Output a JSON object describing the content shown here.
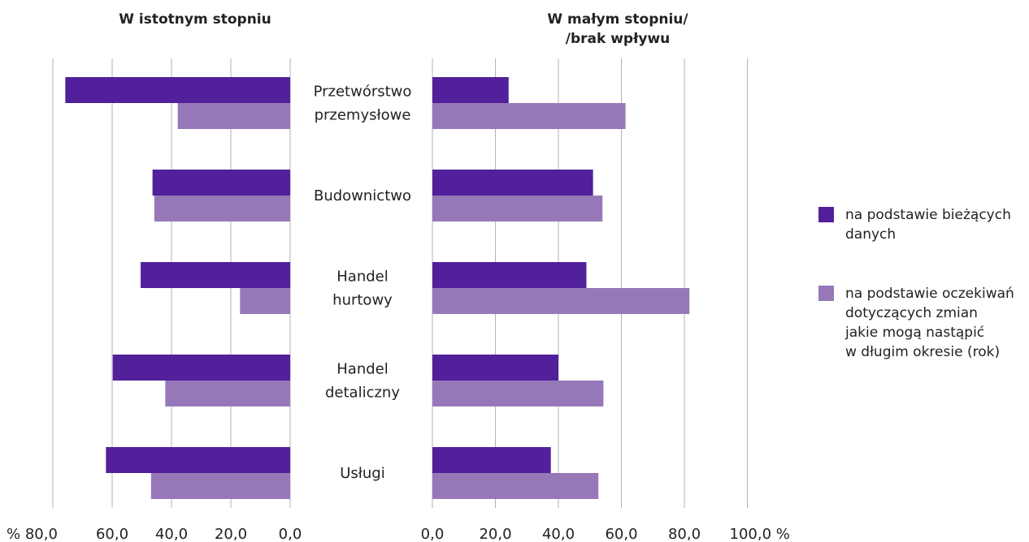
{
  "chart_data": {
    "type": "bar",
    "orientation": "horizontal",
    "categories": [
      [
        "Przetwórstwo",
        "przemysłowe"
      ],
      [
        "Budownictwo"
      ],
      [
        "Handel",
        "hurtowy"
      ],
      [
        "Handel",
        "detaliczny"
      ],
      [
        "Usługi"
      ]
    ],
    "panels": [
      {
        "title": [
          "W istotnym stopniu"
        ],
        "direction": "left",
        "xlim": [
          0,
          80
        ],
        "ticks": [
          80,
          60,
          40,
          20,
          0
        ],
        "tick_labels": [
          "% 80,0",
          "60,0",
          "40,0",
          "20,0",
          "0,0"
        ],
        "series": [
          {
            "name": "na podstawie bieżących danych",
            "values": [
              75.8,
              46.4,
              50.4,
              59.8,
              62.1
            ]
          },
          {
            "name": "na podstawie oczekiwań dotyczących zmian jakie mogą nastąpić w długim okresie (rok)",
            "values": [
              37.9,
              45.8,
              16.9,
              42.1,
              46.9
            ]
          }
        ]
      },
      {
        "title": [
          "W małym stopniu/",
          "/brak wpływu"
        ],
        "direction": "right",
        "xlim": [
          0,
          100
        ],
        "ticks": [
          0,
          20,
          40,
          60,
          80,
          100
        ],
        "tick_labels": [
          "0,0",
          "20,0",
          "40,0",
          "60,0",
          "80,0",
          "100,0 %"
        ],
        "series": [
          {
            "name": "na podstawie bieżących danych",
            "values": [
              24.2,
              51.0,
              48.9,
              40.0,
              37.6
            ]
          },
          {
            "name": "na podstawie oczekiwań dotyczących zmian jakie mogą nastąpić w długim okresie (rok)",
            "values": [
              61.3,
              54.0,
              81.6,
              54.3,
              52.7
            ]
          }
        ]
      }
    ],
    "legend": {
      "placement": "right",
      "items": [
        {
          "lines": [
            "na podstawie bieżących",
            "danych"
          ],
          "color": "#52209a"
        },
        {
          "lines": [
            "na podstawie oczekiwań",
            "dotyczących zmian",
            "jakie mogą nastąpić",
            "w długim okresie (rok)"
          ],
          "color": "#9678b8"
        }
      ]
    },
    "colors": [
      "#52209a",
      "#9678b8"
    ],
    "grid": true
  }
}
